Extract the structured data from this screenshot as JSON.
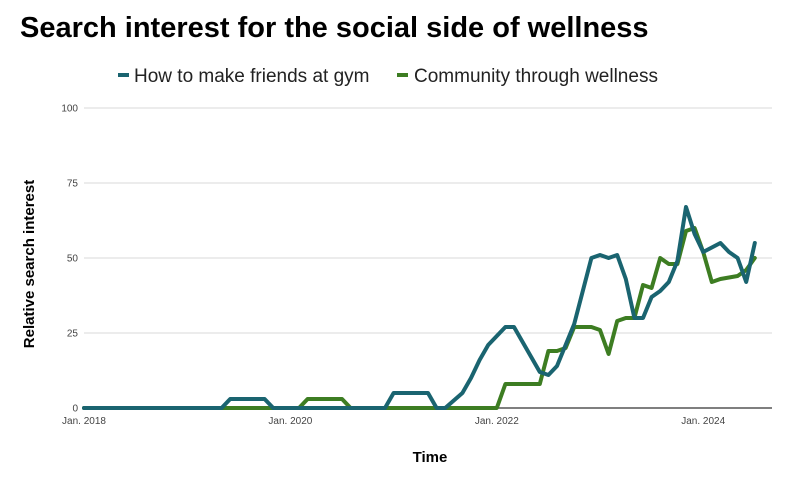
{
  "chart_data": {
    "type": "line",
    "title": "Search interest for the social side of wellness",
    "xlabel": "Time",
    "ylabel": "Relative search interest",
    "ylim": [
      0,
      100
    ],
    "yticks": [
      "100",
      "75",
      "50",
      "25",
      "0"
    ],
    "xticks": [
      "Jan. 2018",
      "Jan. 2020",
      "Jan. 2022",
      "Jan. 2024"
    ],
    "xrange": [
      "2018-01",
      "2024-09"
    ],
    "grid": true,
    "legend_position": "top",
    "series": [
      {
        "name": "How to make friends at gym",
        "color": "#1a6470",
        "points": [
          [
            "2018-01",
            0
          ],
          [
            "2019-05",
            0
          ],
          [
            "2019-06",
            3
          ],
          [
            "2019-10",
            3
          ],
          [
            "2019-11",
            0
          ],
          [
            "2020-12",
            0
          ],
          [
            "2021-01",
            5
          ],
          [
            "2021-05",
            5
          ],
          [
            "2021-06",
            0
          ],
          [
            "2021-07",
            0
          ],
          [
            "2021-09",
            5
          ],
          [
            "2021-10",
            10
          ],
          [
            "2021-11",
            16
          ],
          [
            "2021-12",
            21
          ],
          [
            "2022-02",
            27
          ],
          [
            "2022-03",
            27
          ],
          [
            "2022-04",
            22
          ],
          [
            "2022-05",
            17
          ],
          [
            "2022-06",
            12
          ],
          [
            "2022-07",
            11
          ],
          [
            "2022-08",
            14
          ],
          [
            "2022-10",
            28
          ],
          [
            "2022-11",
            39
          ],
          [
            "2022-12",
            50
          ],
          [
            "2023-01",
            51
          ],
          [
            "2023-02",
            50
          ],
          [
            "2023-03",
            51
          ],
          [
            "2023-04",
            43
          ],
          [
            "2023-05",
            30
          ],
          [
            "2023-06",
            30
          ],
          [
            "2023-07",
            37
          ],
          [
            "2023-08",
            39
          ],
          [
            "2023-09",
            42
          ],
          [
            "2023-10",
            49
          ],
          [
            "2023-11",
            67
          ],
          [
            "2023-12",
            58
          ],
          [
            "2024-01",
            52
          ],
          [
            "2024-03",
            55
          ],
          [
            "2024-04",
            52
          ],
          [
            "2024-05",
            50
          ],
          [
            "2024-06",
            42
          ],
          [
            "2024-07",
            55
          ]
        ]
      },
      {
        "name": "Community through wellness",
        "color": "#3d7d22",
        "points": [
          [
            "2018-01",
            0
          ],
          [
            "2020-01",
            0
          ],
          [
            "2020-02",
            0
          ],
          [
            "2020-03",
            3
          ],
          [
            "2020-07",
            3
          ],
          [
            "2020-08",
            0
          ],
          [
            "2022-01",
            0
          ],
          [
            "2022-02",
            8
          ],
          [
            "2022-06",
            8
          ],
          [
            "2022-07",
            19
          ],
          [
            "2022-08",
            19
          ],
          [
            "2022-09",
            20
          ],
          [
            "2022-10",
            27
          ],
          [
            "2022-12",
            27
          ],
          [
            "2023-01",
            26
          ],
          [
            "2023-02",
            18
          ],
          [
            "2023-03",
            29
          ],
          [
            "2023-04",
            30
          ],
          [
            "2023-05",
            30
          ],
          [
            "2023-06",
            41
          ],
          [
            "2023-07",
            40
          ],
          [
            "2023-08",
            50
          ],
          [
            "2023-09",
            48
          ],
          [
            "2023-10",
            48
          ],
          [
            "2023-11",
            59
          ],
          [
            "2023-12",
            60
          ],
          [
            "2024-01",
            52
          ],
          [
            "2024-02",
            42
          ],
          [
            "2024-03",
            43
          ],
          [
            "2024-05",
            44
          ],
          [
            "2024-06",
            46
          ],
          [
            "2024-07",
            50
          ]
        ]
      }
    ]
  }
}
